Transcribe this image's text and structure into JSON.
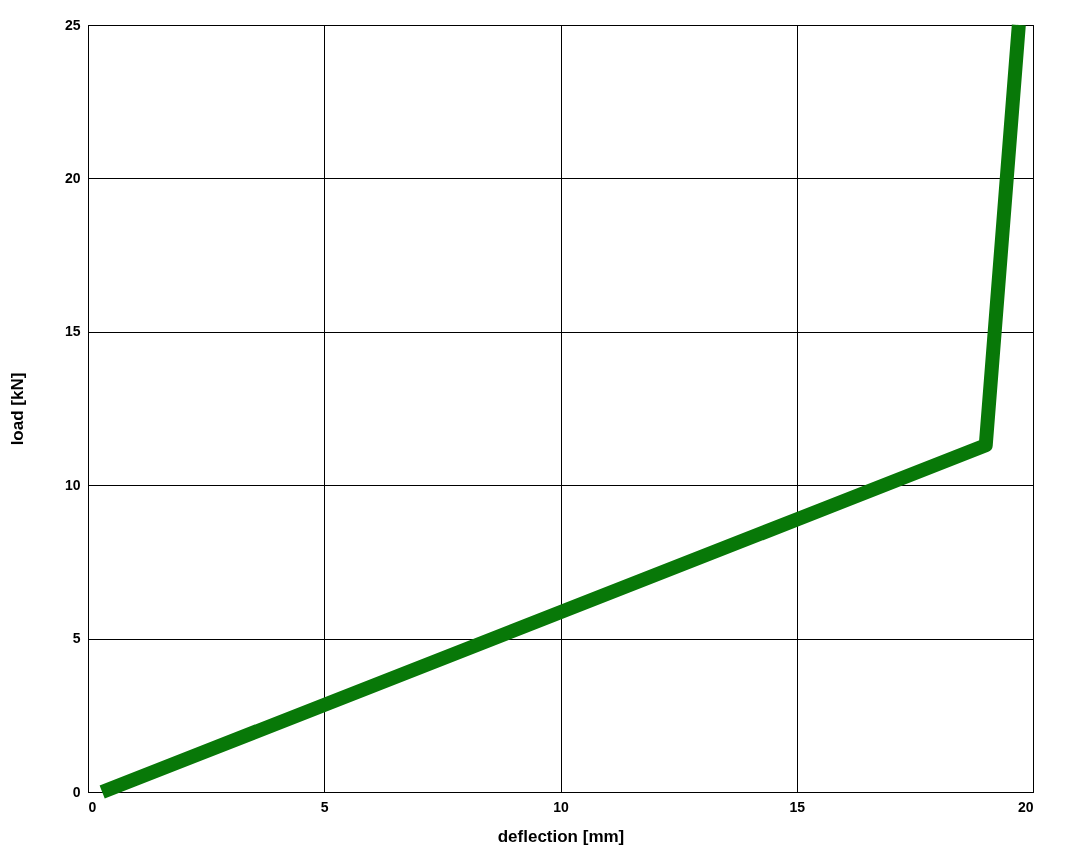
{
  "chart_data": {
    "type": "line",
    "xlabel": "deflection [mm]",
    "ylabel": "load [kN]",
    "x": [
      0.3,
      19.0,
      19.7
    ],
    "series": [
      {
        "color": "#087808",
        "values": [
          0,
          11.3,
          25
        ]
      }
    ],
    "xlim": [
      0,
      20
    ],
    "xticks": [
      0,
      5,
      10,
      15,
      20
    ],
    "ylim": [
      0,
      25
    ],
    "yticks": [
      0,
      5,
      10,
      15,
      20,
      25
    ],
    "grid": true,
    "marker": "none",
    "line_style": "solid"
  }
}
